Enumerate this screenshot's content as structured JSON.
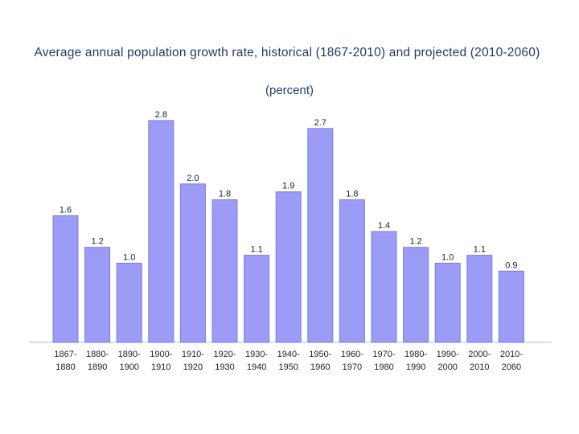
{
  "chart_data": {
    "type": "bar",
    "title": "Average annual population growth rate, historical (1867-2010) and projected (2010-2060)",
    "subtitle": "(percent)",
    "categories": [
      [
        "1867-",
        "1880"
      ],
      [
        "1880-",
        "1890"
      ],
      [
        "1890-",
        "1900"
      ],
      [
        "1900-",
        "1910"
      ],
      [
        "1910-",
        "1920"
      ],
      [
        "1920-",
        "1930"
      ],
      [
        "1930-",
        "1940"
      ],
      [
        "1940-",
        "1950"
      ],
      [
        "1950-",
        "1960"
      ],
      [
        "1960-",
        "1970"
      ],
      [
        "1970-",
        "1980"
      ],
      [
        "1980-",
        "1990"
      ],
      [
        "1990-",
        "2000"
      ],
      [
        "2000-",
        "2010"
      ],
      [
        "2010-",
        "2060"
      ]
    ],
    "values": [
      1.6,
      1.2,
      1.0,
      2.8,
      2.0,
      1.8,
      1.1,
      1.9,
      2.7,
      1.8,
      1.4,
      1.2,
      1.0,
      1.1,
      0.9
    ],
    "value_labels": [
      "1.6",
      "1.2",
      "1.0",
      "2.8",
      "2.0",
      "1.8",
      "1.1",
      "1.9",
      "2.7",
      "1.8",
      "1.4",
      "1.2",
      "1.0",
      "1.1",
      "0.9"
    ],
    "xlabel": "",
    "ylabel": "",
    "ylim": [
      0,
      2.8
    ],
    "grid": false,
    "legend": "none",
    "bar_color": "#9c9cf7"
  }
}
